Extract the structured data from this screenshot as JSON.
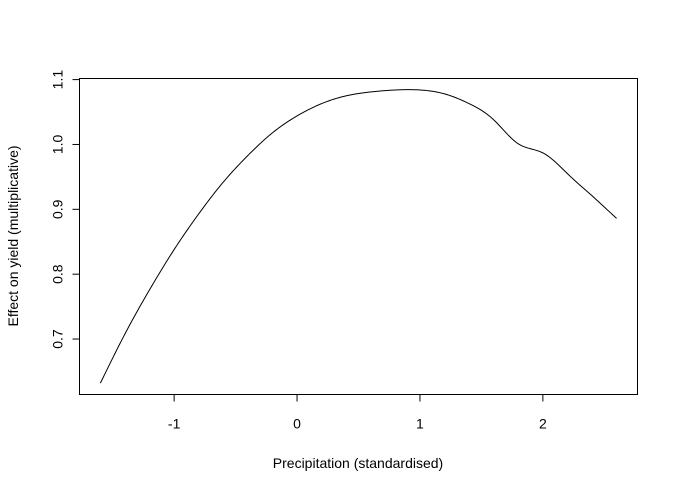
{
  "chart_data": {
    "type": "line",
    "title": "",
    "xlabel": "Precipitation (standardised)",
    "ylabel": "Effect on yield (multiplicative)",
    "xlim": [
      -1.77,
      2.77
    ],
    "ylim": [
      0.6145,
      1.1017
    ],
    "x_ticks": [
      -1,
      0,
      1,
      2
    ],
    "y_ticks": [
      0.7,
      0.8,
      0.9,
      1.0,
      1.1
    ],
    "x_tick_labels": [
      "-1",
      "0",
      "1",
      "2"
    ],
    "y_tick_labels": [
      "0.7",
      "0.8",
      "0.9",
      "1.0",
      "1.1"
    ],
    "grid": false,
    "legend": "none",
    "series": [
      {
        "x": [
          -1.6,
          -1.4,
          -1.2,
          -1.0,
          -0.8,
          -0.6,
          -0.4,
          -0.2,
          0.0,
          0.2,
          0.4,
          0.6,
          0.8,
          1.0,
          1.2,
          1.4,
          1.6,
          1.8,
          2.0,
          2.2,
          2.4,
          2.6
        ],
        "y": [
          0.632,
          0.708,
          0.776,
          0.838,
          0.893,
          0.942,
          0.983,
          1.018,
          1.044,
          1.063,
          1.075,
          1.081,
          1.084,
          1.084,
          1.078,
          1.063,
          1.038,
          1.001,
          0.987,
          0.955,
          0.921,
          0.886
        ]
      }
    ]
  }
}
